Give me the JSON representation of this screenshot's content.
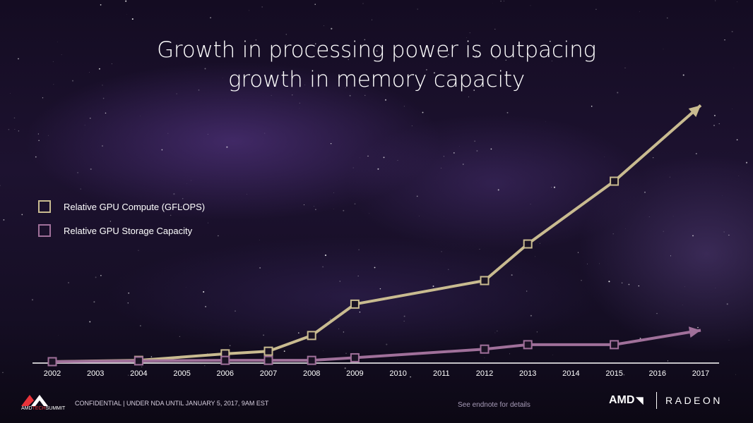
{
  "title_line1": "Growth in processing power is outpacing",
  "title_line2": "growth in memory capacity",
  "legend": [
    {
      "label": "Relative GPU Compute (GFLOPS)",
      "color": "#c9bb90"
    },
    {
      "label": "Relative GPU Storage Capacity",
      "color": "#a0709a"
    }
  ],
  "chart_data": {
    "type": "line",
    "categories": [
      "2002",
      "2003",
      "2004",
      "2005",
      "2006",
      "2007",
      "2008",
      "2009",
      "2010",
      "2011",
      "2012",
      "2013",
      "2014",
      "2015",
      "2016",
      "2017"
    ],
    "series": [
      {
        "name": "Relative GPU Compute (GFLOPS)",
        "color": "#c9bb90",
        "points": [
          {
            "x": "2002",
            "y": 0
          },
          {
            "x": "2004",
            "y": 0.5
          },
          {
            "x": "2006",
            "y": 3
          },
          {
            "x": "2007",
            "y": 4
          },
          {
            "x": "2008",
            "y": 10
          },
          {
            "x": "2009",
            "y": 22
          },
          {
            "x": "2012",
            "y": 31
          },
          {
            "x": "2013",
            "y": 45
          },
          {
            "x": "2015",
            "y": 69
          }
        ],
        "arrow_to": {
          "x": "2017",
          "y": 98
        }
      },
      {
        "name": "Relative GPU Storage Capacity",
        "color": "#a0709a",
        "points": [
          {
            "x": "2002",
            "y": 0
          },
          {
            "x": "2004",
            "y": 0.3
          },
          {
            "x": "2006",
            "y": 0.5
          },
          {
            "x": "2007",
            "y": 0.5
          },
          {
            "x": "2008",
            "y": 0.5
          },
          {
            "x": "2009",
            "y": 1.5
          },
          {
            "x": "2012",
            "y": 4.8
          },
          {
            "x": "2013",
            "y": 6.5
          },
          {
            "x": "2015",
            "y": 6.5
          }
        ],
        "arrow_to": {
          "x": "2017",
          "y": 12
        }
      }
    ],
    "ylim": [
      0,
      100
    ],
    "grid": false,
    "legend_position": "left"
  },
  "footer": {
    "summit_brand_1": "AMD",
    "summit_brand_2": "TECH",
    "summit_brand_3": "SUMMIT",
    "confidential": "CONFIDENTIAL | UNDER NDA UNTIL JANUARY 5, 2017, 9AM EST",
    "endnote": "See endnote for details",
    "amd_logo": "AMD",
    "radeon_logo": "RADEON"
  },
  "colors": {
    "compute": "#c9bb90",
    "storage": "#a0709a",
    "axis": "#ffffff"
  }
}
